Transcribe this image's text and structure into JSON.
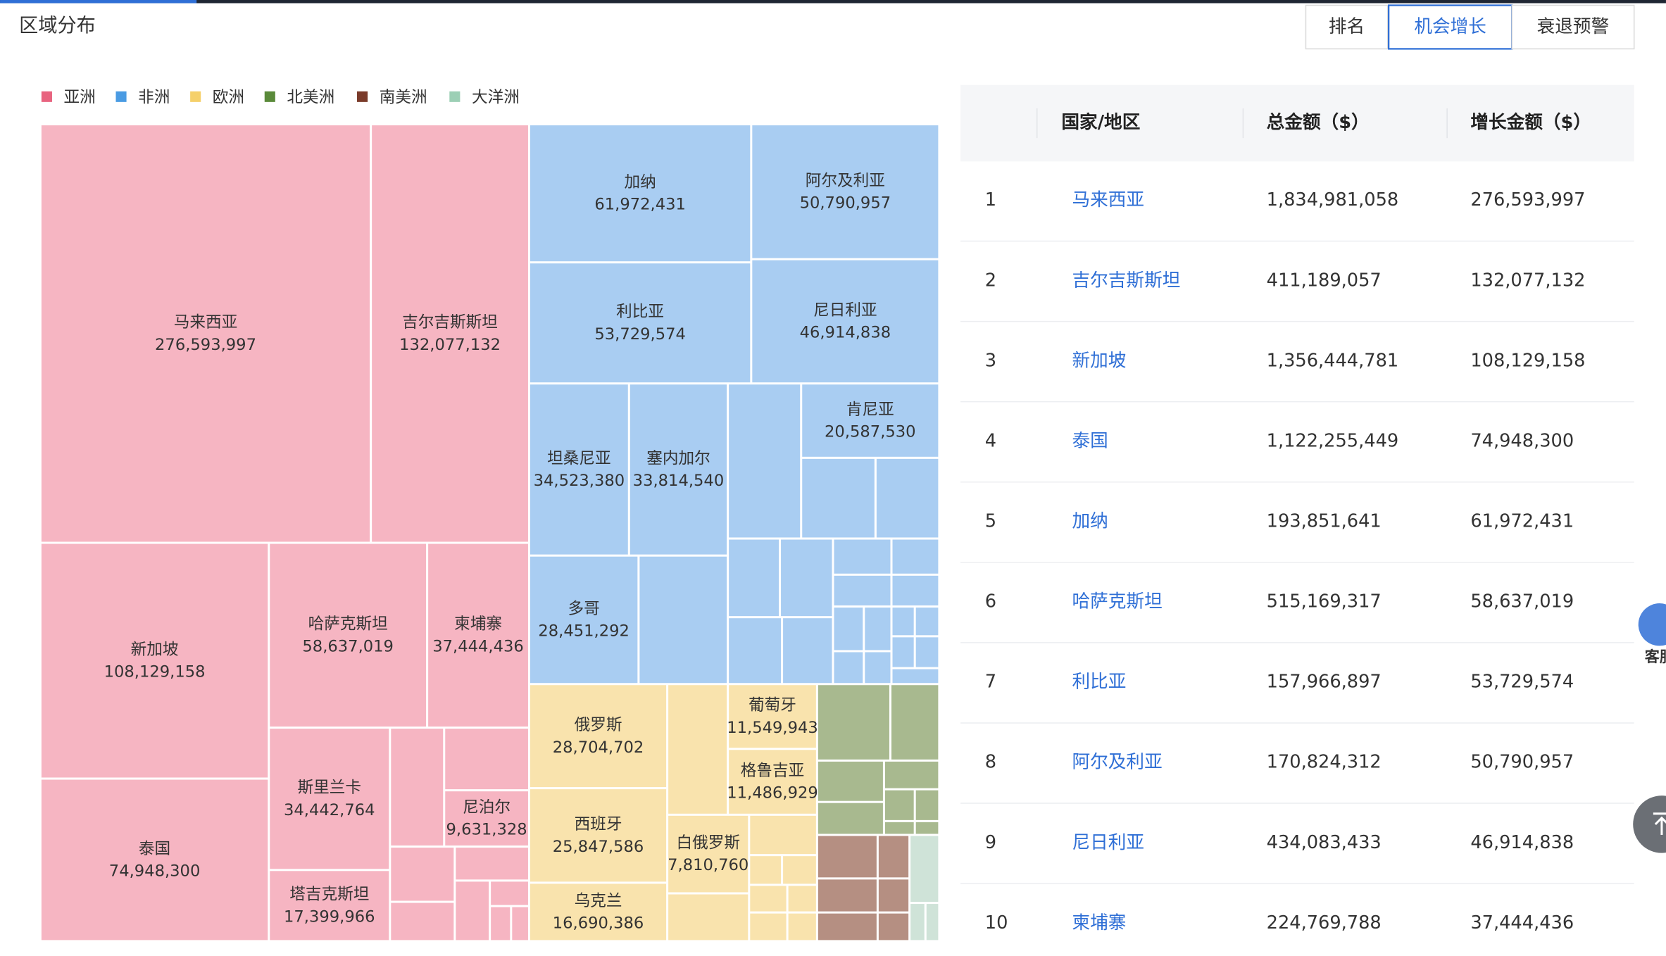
{
  "header": {
    "title": "区域分布",
    "tabs": [
      "排名",
      "机会增长",
      "衰退预警"
    ],
    "active_tab": 1
  },
  "legend": [
    {
      "name": "亚洲",
      "color": "#e8647f",
      "fill": "#f6b5c2"
    },
    {
      "name": "非洲",
      "color": "#4a9be3",
      "fill": "#a9cdf2"
    },
    {
      "name": "欧洲",
      "color": "#f5d06a",
      "fill": "#f9e3ad"
    },
    {
      "name": "北美洲",
      "color": "#5a8a3a",
      "fill": "#a8b98f"
    },
    {
      "name": "南美洲",
      "color": "#7a3b2a",
      "fill": "#b58f82"
    },
    {
      "name": "大洋洲",
      "color": "#9ccfb5",
      "fill": "#cfe3d8"
    }
  ],
  "treemap": {
    "cells": [
      {
        "name": "马来西亚",
        "value": "276,593,997"
      },
      {
        "name": "吉尔吉斯斯坦",
        "value": "132,077,132"
      },
      {
        "name": "新加坡",
        "value": "108,129,158"
      },
      {
        "name": "泰国",
        "value": "74,948,300"
      },
      {
        "name": "哈萨克斯坦",
        "value": "58,637,019"
      },
      {
        "name": "柬埔寨",
        "value": "37,444,436"
      },
      {
        "name": "斯里兰卡",
        "value": "34,442,764"
      },
      {
        "name": "塔吉克斯坦",
        "value": "17,399,966"
      },
      {
        "name": "尼泊尔",
        "value": "9,631,328"
      },
      {
        "name": "加纳",
        "value": "61,972,431"
      },
      {
        "name": "阿尔及利亚",
        "value": "50,790,957"
      },
      {
        "name": "利比亚",
        "value": "53,729,574"
      },
      {
        "name": "尼日利亚",
        "value": "46,914,838"
      },
      {
        "name": "坦桑尼亚",
        "value": "34,523,380"
      },
      {
        "name": "塞内加尔",
        "value": "33,814,540"
      },
      {
        "name": "肯尼亚",
        "value": "20,587,530"
      },
      {
        "name": "多哥",
        "value": "28,451,292"
      },
      {
        "name": "俄罗斯",
        "value": "28,704,702"
      },
      {
        "name": "西班牙",
        "value": "25,847,586"
      },
      {
        "name": "乌克兰",
        "value": "16,690,386"
      },
      {
        "name": "葡萄牙",
        "value": "11,549,943"
      },
      {
        "name": "格鲁吉亚",
        "value": "11,486,929"
      },
      {
        "name": "白俄罗斯",
        "value": "7,810,760"
      }
    ]
  },
  "table": {
    "columns": [
      "国家/地区",
      "总金额（$）",
      "增长金额（$）"
    ],
    "rows": [
      [
        "1",
        "马来西亚",
        "1,834,981,058",
        "276,593,997"
      ],
      [
        "2",
        "吉尔吉斯斯坦",
        "411,189,057",
        "132,077,132"
      ],
      [
        "3",
        "新加坡",
        "1,356,444,781",
        "108,129,158"
      ],
      [
        "4",
        "泰国",
        "1,122,255,449",
        "74,948,300"
      ],
      [
        "5",
        "加纳",
        "193,851,641",
        "61,972,431"
      ],
      [
        "6",
        "哈萨克斯坦",
        "515,169,317",
        "58,637,019"
      ],
      [
        "7",
        "利比亚",
        "157,966,897",
        "53,729,574"
      ],
      [
        "8",
        "阿尔及利亚",
        "170,824,312",
        "50,790,957"
      ],
      [
        "9",
        "尼日利亚",
        "434,083,433",
        "46,914,838"
      ],
      [
        "10",
        "柬埔寨",
        "224,769,788",
        "37,444,436"
      ]
    ]
  },
  "service": "客服"
}
